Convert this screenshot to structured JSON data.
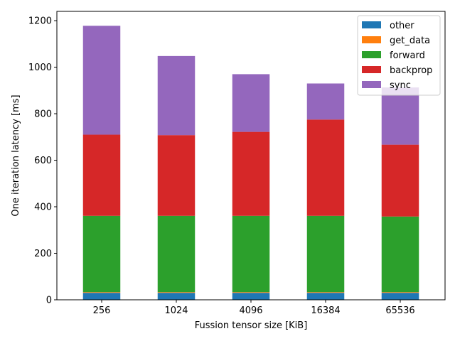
{
  "chart_data": {
    "type": "bar",
    "stacked": true,
    "categories": [
      "256",
      "1024",
      "4096",
      "16384",
      "65536"
    ],
    "series": [
      {
        "name": "other",
        "color": "#1f77b4",
        "values": [
          30,
          30,
          30,
          30,
          30
        ]
      },
      {
        "name": "get_data",
        "color": "#ff7f0e",
        "values": [
          3,
          3,
          3,
          3,
          3
        ]
      },
      {
        "name": "forward",
        "color": "#2ca02c",
        "values": [
          328,
          328,
          328,
          328,
          325
        ]
      },
      {
        "name": "backprop",
        "color": "#d62728",
        "values": [
          349,
          347,
          361,
          414,
          309
        ]
      },
      {
        "name": "sync",
        "color": "#9467bd",
        "values": [
          468,
          340,
          248,
          155,
          246
        ]
      }
    ],
    "xlabel": "Fussion tensor size [KiB]",
    "ylabel": "One iteration latency [ms]",
    "ylim": [
      0,
      1240
    ],
    "yticks": [
      "0",
      "200",
      "400",
      "600",
      "800",
      "1000",
      "1200"
    ],
    "legend_position": "upper-right",
    "grid": false
  }
}
